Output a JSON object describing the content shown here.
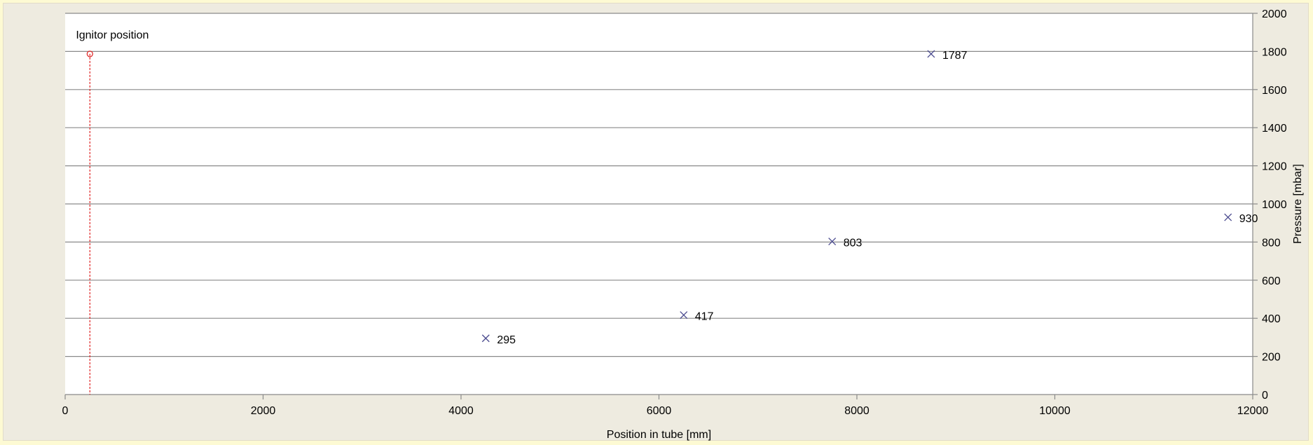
{
  "chart_data": {
    "type": "scatter",
    "xlabel": "Position in tube [mm]",
    "ylabel": "Pressure [mbar]",
    "xlim": [
      0,
      12000
    ],
    "ylim": [
      0,
      2000
    ],
    "x_ticks": [
      0,
      2000,
      4000,
      6000,
      8000,
      10000,
      12000
    ],
    "y_ticks": [
      0,
      200,
      400,
      600,
      800,
      1000,
      1200,
      1400,
      1600,
      1800,
      2000
    ],
    "y_axis_side": "right",
    "grid": "horizontal",
    "series": [
      {
        "marker": "x",
        "color": "#4b4b8f",
        "points": [
          {
            "x": 4250,
            "y": 295,
            "label": "295"
          },
          {
            "x": 6250,
            "y": 417,
            "label": "417"
          },
          {
            "x": 7750,
            "y": 803,
            "label": "803"
          },
          {
            "x": 8750,
            "y": 1787,
            "label": "1787"
          },
          {
            "x": 11750,
            "y": 930,
            "label": "930"
          }
        ]
      }
    ],
    "ignitor": {
      "label": "Ignitor position",
      "x": 250,
      "y": 1787,
      "marker": "circle",
      "line_style": "dashed",
      "color": "#e02020"
    }
  }
}
